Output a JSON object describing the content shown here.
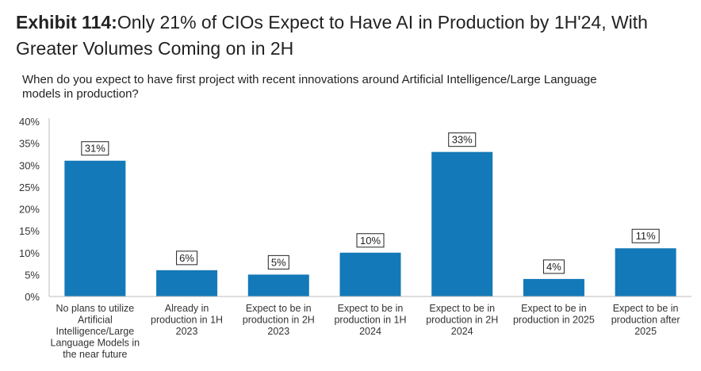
{
  "header": {
    "exhibit_label": "Exhibit 114:",
    "title": "Only 21% of CIOs Expect to Have AI in Production by 1H'24, With Greater Volumes Coming on in 2H"
  },
  "chart_data": {
    "type": "bar",
    "title": "Exhibit 114: Only 21% of CIOs Expect to Have AI in Production by 1H'24, With Greater Volumes Coming on in 2H",
    "subtitle": "When do you expect to have first project with recent innovations around Artificial Intelligence/Large Language models in production?",
    "xlabel": "",
    "ylabel": "",
    "ylim": [
      0,
      40
    ],
    "yticks": [
      "0%",
      "5%",
      "10%",
      "15%",
      "20%",
      "25%",
      "30%",
      "35%",
      "40%"
    ],
    "ytick_values": [
      0,
      5,
      10,
      15,
      20,
      25,
      30,
      35,
      40
    ],
    "grid": false,
    "legend": "none",
    "bar_color": "#1479b8",
    "categories": [
      [
        "No plans to utilize",
        "Artificial",
        "Intelligence/Large",
        "Language Models in",
        "the near future"
      ],
      [
        "Already in",
        "production in 1H",
        "2023"
      ],
      [
        "Expect to be in",
        "production in 2H",
        "2023"
      ],
      [
        "Expect to be in",
        "production in 1H",
        "2024"
      ],
      [
        "Expect to be in",
        "production in 2H",
        "2024"
      ],
      [
        "Expect to be in",
        "production in 2025"
      ],
      [
        "Expect to be in",
        "production after",
        "2025"
      ]
    ],
    "values": [
      31,
      6,
      5,
      10,
      33,
      4,
      11
    ],
    "data_labels": [
      "31%",
      "6%",
      "5%",
      "10%",
      "33%",
      "4%",
      "11%"
    ]
  }
}
